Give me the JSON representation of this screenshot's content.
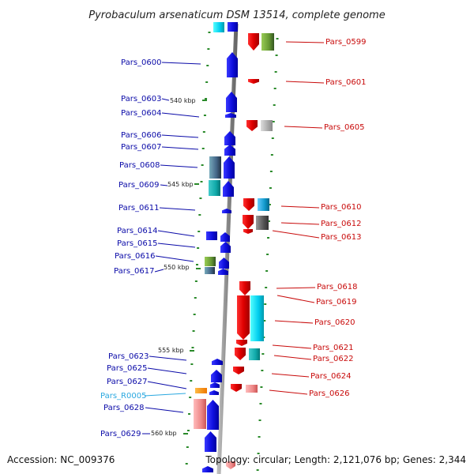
{
  "title": "Pyrobaculum arsenaticum DSM 13514, complete genome",
  "footer": {
    "accession": "Accession: NC_009376",
    "topology": "Topology: circular; Length: 2,121,076 bp; Genes: 2,344"
  },
  "colors": {
    "backbone": "#9a9a9a",
    "forward_gene": "#1414e6",
    "reverse_gene": "#e01010",
    "label_forward": "#0a0aa8",
    "label_reverse": "#c80a0a",
    "label_rna": "#2aa8e0",
    "tick": "#2a8a2a"
  },
  "scale_labels": [
    "540 kbp",
    "545 kbp",
    "550 kbp",
    "555 kbp",
    "560 kbp"
  ],
  "left_labels": [
    {
      "text": "Pars_0600",
      "kind": "forward"
    },
    {
      "text": "Pars_0603",
      "kind": "forward"
    },
    {
      "text": "Pars_0604",
      "kind": "forward"
    },
    {
      "text": "Pars_0606",
      "kind": "forward"
    },
    {
      "text": "Pars_0607",
      "kind": "forward"
    },
    {
      "text": "Pars_0608",
      "kind": "forward"
    },
    {
      "text": "Pars_0609",
      "kind": "forward"
    },
    {
      "text": "Pars_0611",
      "kind": "forward"
    },
    {
      "text": "Pars_0614",
      "kind": "forward"
    },
    {
      "text": "Pars_0615",
      "kind": "forward"
    },
    {
      "text": "Pars_0616",
      "kind": "forward"
    },
    {
      "text": "Pars_0617",
      "kind": "forward"
    },
    {
      "text": "Pars_0623",
      "kind": "forward"
    },
    {
      "text": "Pars_0625",
      "kind": "forward"
    },
    {
      "text": "Pars_0627",
      "kind": "forward"
    },
    {
      "text": "Pars_R0005",
      "kind": "rna"
    },
    {
      "text": "Pars_0628",
      "kind": "forward"
    },
    {
      "text": "Pars_0629",
      "kind": "forward"
    }
  ],
  "right_labels": [
    {
      "text": "Pars_0599",
      "kind": "reverse"
    },
    {
      "text": "Pars_0601",
      "kind": "reverse"
    },
    {
      "text": "Pars_0605",
      "kind": "reverse"
    },
    {
      "text": "Pars_0610",
      "kind": "reverse"
    },
    {
      "text": "Pars_0612",
      "kind": "reverse"
    },
    {
      "text": "Pars_0613",
      "kind": "reverse"
    },
    {
      "text": "Pars_0618",
      "kind": "reverse"
    },
    {
      "text": "Pars_0619",
      "kind": "reverse"
    },
    {
      "text": "Pars_0620",
      "kind": "reverse"
    },
    {
      "text": "Pars_0621",
      "kind": "reverse"
    },
    {
      "text": "Pars_0622",
      "kind": "reverse"
    },
    {
      "text": "Pars_0624",
      "kind": "reverse"
    },
    {
      "text": "Pars_0626",
      "kind": "reverse"
    }
  ]
}
